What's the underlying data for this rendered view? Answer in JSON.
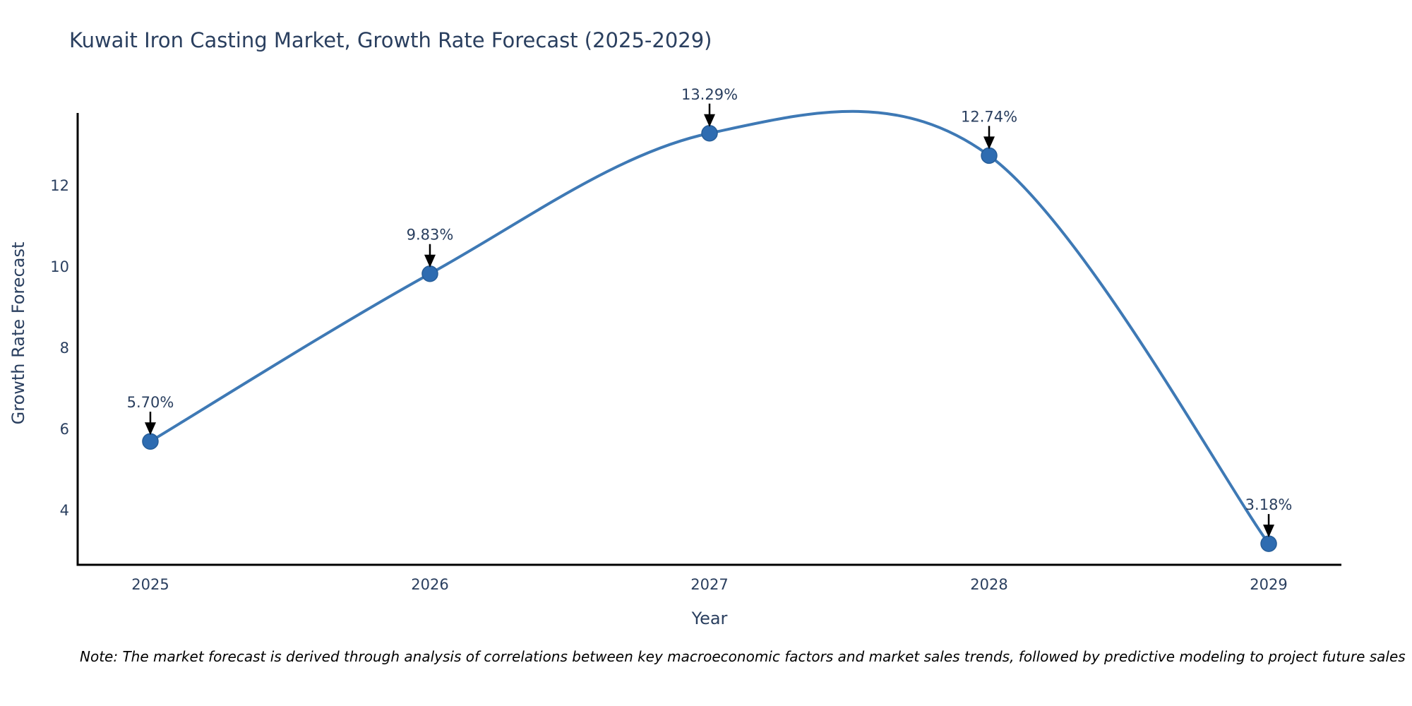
{
  "note": "Note: The market forecast is derived through analysis of correlations between key macroeconomic factors and market sales trends, followed by predictive modeling to project future sales",
  "chart_data": {
    "type": "line",
    "line_shape": "spline",
    "title": "Kuwait Iron Casting Market, Growth Rate Forecast (2025-2029)",
    "xlabel": "Year",
    "ylabel": "Growth Rate Forecast",
    "x": [
      2025,
      2026,
      2027,
      2028,
      2029
    ],
    "x_tick_labels": [
      "2025",
      "2026",
      "2027",
      "2028",
      "2029"
    ],
    "series": [
      {
        "name": "Growth Rate Forecast",
        "values": [
          5.7,
          9.83,
          13.29,
          12.74,
          3.18
        ]
      }
    ],
    "point_labels": [
      "5.70%",
      "9.83%",
      "13.29%",
      "12.74%",
      "3.18%"
    ],
    "yticks": [
      4,
      6,
      8,
      10,
      12
    ],
    "ylim": [
      2.66,
      13.79
    ],
    "xlim": [
      2024.74,
      2029.26
    ],
    "grid": false,
    "legend": "none",
    "markers": true,
    "annotation_arrows": true,
    "colors": {
      "line": "#3e79b5",
      "marker": "#2e6cb1",
      "marker_edge": "#265d98",
      "axis": "#000000",
      "text": "#2a3f5f",
      "arrow": "#000000",
      "background": "#ffffff"
    }
  }
}
